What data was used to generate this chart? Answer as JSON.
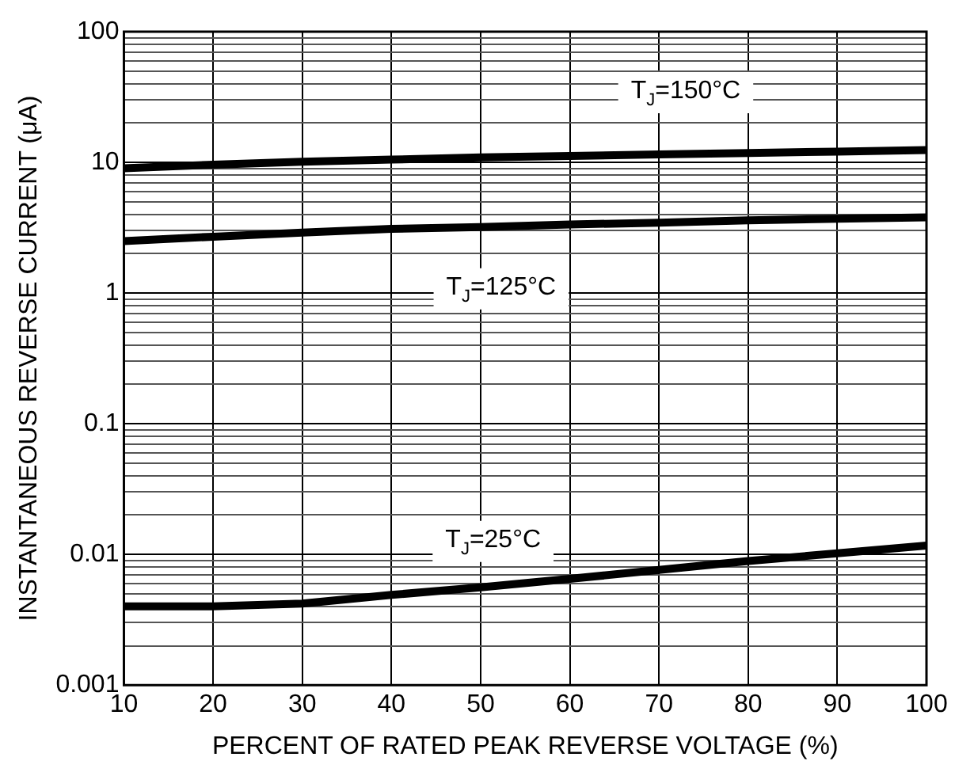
{
  "chart_data": {
    "type": "line",
    "xlabel": "PERCENT OF RATED PEAK REVERSE VOLTAGE (%)",
    "ylabel": "INSTANTANEOUS REVERSE CURRENT (μA)",
    "x": [
      10,
      20,
      30,
      40,
      50,
      60,
      70,
      80,
      90,
      100
    ],
    "series": [
      {
        "name": "T$_{J}$=150°C",
        "color": "#000000",
        "values": [
          9.0,
          9.6,
          10.1,
          10.5,
          10.9,
          11.2,
          11.5,
          11.8,
          12.1,
          12.4
        ]
      },
      {
        "name": "T$_{J}$=125°C",
        "color": "#000000",
        "values": [
          2.5,
          2.7,
          2.9,
          3.1,
          3.2,
          3.35,
          3.45,
          3.6,
          3.7,
          3.8
        ]
      },
      {
        "name": "T$_{J}$=25°C",
        "color": "#000000",
        "values": [
          0.004,
          0.004,
          0.0042,
          0.0049,
          0.0056,
          0.0065,
          0.0076,
          0.0089,
          0.0102,
          0.0117
        ]
      }
    ],
    "log": "y",
    "xlim": [
      10,
      100
    ],
    "xticks": [
      10,
      20,
      30,
      40,
      50,
      60,
      70,
      80,
      90,
      100
    ],
    "ylim": [
      0.001,
      100
    ],
    "yticks": [
      0.001,
      {
        "value": 0.002,
        "label": null
      },
      {
        "value": 0.003,
        "label": null
      },
      {
        "value": 0.004,
        "label": null
      },
      {
        "value": 0.005,
        "label": null
      },
      {
        "value": 0.006,
        "label": null
      },
      {
        "value": 0.007,
        "label": null
      },
      {
        "value": 0.008,
        "label": null
      },
      {
        "value": 0.009,
        "label": null
      },
      0.01,
      {
        "value": 0.02,
        "label": null
      },
      {
        "value": 0.03,
        "label": null
      },
      {
        "value": 0.04,
        "label": null
      },
      {
        "value": 0.05,
        "label": null
      },
      {
        "value": 0.06,
        "label": null
      },
      {
        "value": 0.07,
        "label": null
      },
      {
        "value": 0.08,
        "label": null
      },
      {
        "value": 0.09,
        "label": null
      },
      0.1,
      {
        "value": 0.2,
        "label": null
      },
      {
        "value": 0.3,
        "label": null
      },
      {
        "value": 0.4,
        "label": null
      },
      {
        "value": 0.5,
        "label": null
      },
      {
        "value": 0.6,
        "label": null
      },
      {
        "value": 0.7,
        "label": null
      },
      {
        "value": 0.8,
        "label": null
      },
      {
        "value": 0.9,
        "label": null
      },
      1,
      {
        "value": 2,
        "label": null
      },
      {
        "value": 3,
        "label": null
      },
      {
        "value": 4,
        "label": null
      },
      {
        "value": 5,
        "label": null
      },
      {
        "value": 6,
        "label": null
      },
      {
        "value": 7,
        "label": null
      },
      {
        "value": 8,
        "label": null
      },
      {
        "value": 9,
        "label": null
      },
      10,
      {
        "value": 20,
        "label": null
      },
      {
        "value": 30,
        "label": null
      },
      {
        "value": 40,
        "label": null
      },
      {
        "value": 50,
        "label": null
      },
      {
        "value": 60,
        "label": null
      },
      {
        "value": 70,
        "label": null
      },
      {
        "value": 80,
        "label": null
      },
      {
        "value": 90,
        "label": null
      },
      100
    ],
    "grid": true,
    "legend": false,
    "marker": "none",
    "line_style": "solid"
  }
}
